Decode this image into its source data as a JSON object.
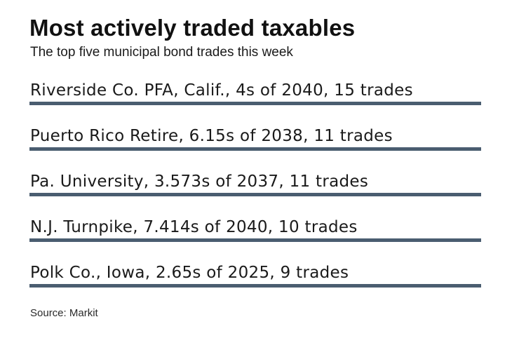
{
  "chart_data": {
    "type": "table",
    "title": "Most actively traded taxables",
    "subtitle": "The top five municipal bond trades this week",
    "rows": [
      "Riverside Co. PFA, Calif., 4s of 2040, 15 trades",
      "Puerto Rico Retire, 6.15s of 2038, 11 trades",
      "Pa. University, 3.573s of 2037, 11 trades",
      "N.J. Turnpike, 7.414s of 2040, 10 trades",
      "Polk Co., Iowa, 2.65s of 2025, 9 trades"
    ],
    "bar_color": "#4a5d70",
    "source": "Source: Markit"
  }
}
